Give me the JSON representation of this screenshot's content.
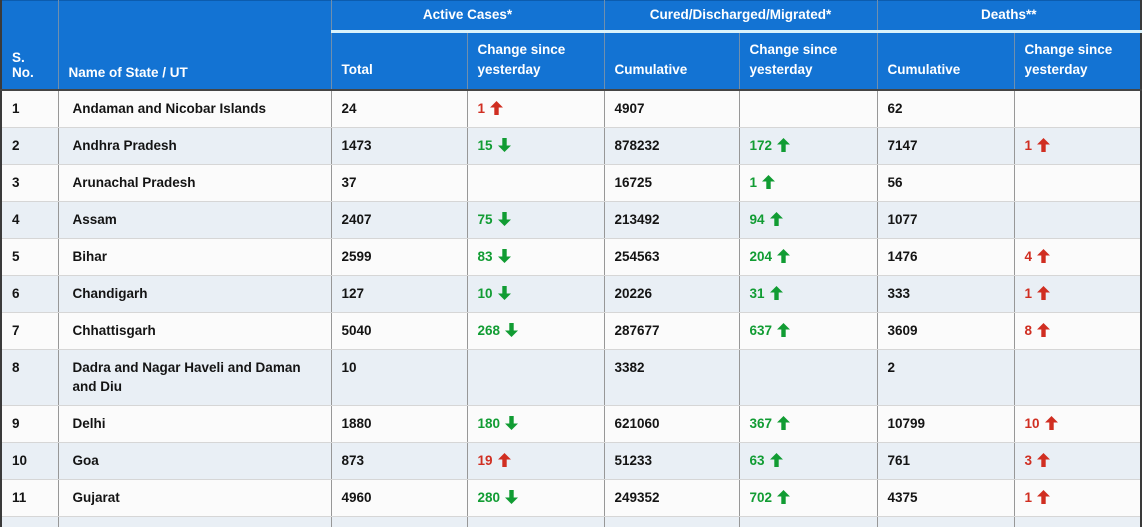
{
  "page": {
    "background": "#ffffff",
    "description_text": ""
  },
  "colors": {
    "header_bg": "#1373d3",
    "header_text": "#ffffff",
    "header_divider": "#d9f2fb",
    "row_even_bg": "#e9eff5",
    "row_odd_bg": "#fbfbfb",
    "positive_green": "#119c33",
    "negative_red": "#d02e21",
    "cell_text": "#141414"
  },
  "table": {
    "groups": [
      {
        "label": "Active Cases*"
      },
      {
        "label": "Cured/Discharged/Migrated*"
      },
      {
        "label": "Deaths**"
      }
    ],
    "headers": {
      "serial": "S. No.",
      "state": "Name of State / UT",
      "active_total": "Total",
      "active_change": "Change since yesterday",
      "cured_cumulative": "Cumulative",
      "cured_change": "Change since yesterday",
      "deaths_cumulative": "Cumulative",
      "deaths_change": "Change since yesterday"
    },
    "rows": [
      {
        "sno": "1",
        "state": "Andaman and Nicobar Islands",
        "active_total": "24",
        "active_change": {
          "value": "1",
          "dir": "up",
          "color": "red"
        },
        "cured_cumulative": "4907",
        "cured_change": null,
        "deaths_cumulative": "62",
        "deaths_change": null
      },
      {
        "sno": "2",
        "state": "Andhra Pradesh",
        "active_total": "1473",
        "active_change": {
          "value": "15",
          "dir": "down",
          "color": "green"
        },
        "cured_cumulative": "878232",
        "cured_change": {
          "value": "172",
          "dir": "up",
          "color": "green"
        },
        "deaths_cumulative": "7147",
        "deaths_change": {
          "value": "1",
          "dir": "up",
          "color": "red"
        }
      },
      {
        "sno": "3",
        "state": "Arunachal Pradesh",
        "active_total": "37",
        "active_change": null,
        "cured_cumulative": "16725",
        "cured_change": {
          "value": "1",
          "dir": "up",
          "color": "green"
        },
        "deaths_cumulative": "56",
        "deaths_change": null
      },
      {
        "sno": "4",
        "state": "Assam",
        "active_total": "2407",
        "active_change": {
          "value": "75",
          "dir": "down",
          "color": "green"
        },
        "cured_cumulative": "213492",
        "cured_change": {
          "value": "94",
          "dir": "up",
          "color": "green"
        },
        "deaths_cumulative": "1077",
        "deaths_change": null
      },
      {
        "sno": "5",
        "state": "Bihar",
        "active_total": "2599",
        "active_change": {
          "value": "83",
          "dir": "down",
          "color": "green"
        },
        "cured_cumulative": "254563",
        "cured_change": {
          "value": "204",
          "dir": "up",
          "color": "green"
        },
        "deaths_cumulative": "1476",
        "deaths_change": {
          "value": "4",
          "dir": "up",
          "color": "red"
        }
      },
      {
        "sno": "6",
        "state": "Chandigarh",
        "active_total": "127",
        "active_change": {
          "value": "10",
          "dir": "down",
          "color": "green"
        },
        "cured_cumulative": "20226",
        "cured_change": {
          "value": "31",
          "dir": "up",
          "color": "green"
        },
        "deaths_cumulative": "333",
        "deaths_change": {
          "value": "1",
          "dir": "up",
          "color": "red"
        }
      },
      {
        "sno": "7",
        "state": "Chhattisgarh",
        "active_total": "5040",
        "active_change": {
          "value": "268",
          "dir": "down",
          "color": "green"
        },
        "cured_cumulative": "287677",
        "cured_change": {
          "value": "637",
          "dir": "up",
          "color": "green"
        },
        "deaths_cumulative": "3609",
        "deaths_change": {
          "value": "8",
          "dir": "up",
          "color": "red"
        }
      },
      {
        "sno": "8",
        "state": "Dadra and Nagar Haveli and Daman and Diu",
        "active_total": "10",
        "active_change": null,
        "cured_cumulative": "3382",
        "cured_change": null,
        "deaths_cumulative": "2",
        "deaths_change": null
      },
      {
        "sno": "9",
        "state": "Delhi",
        "active_total": "1880",
        "active_change": {
          "value": "180",
          "dir": "down",
          "color": "green"
        },
        "cured_cumulative": "621060",
        "cured_change": {
          "value": "367",
          "dir": "up",
          "color": "green"
        },
        "deaths_cumulative": "10799",
        "deaths_change": {
          "value": "10",
          "dir": "up",
          "color": "red"
        }
      },
      {
        "sno": "10",
        "state": "Goa",
        "active_total": "873",
        "active_change": {
          "value": "19",
          "dir": "up",
          "color": "red"
        },
        "cured_cumulative": "51233",
        "cured_change": {
          "value": "63",
          "dir": "up",
          "color": "green"
        },
        "deaths_cumulative": "761",
        "deaths_change": {
          "value": "3",
          "dir": "up",
          "color": "red"
        }
      },
      {
        "sno": "11",
        "state": "Gujarat",
        "active_total": "4960",
        "active_change": {
          "value": "280",
          "dir": "down",
          "color": "green"
        },
        "cured_cumulative": "249352",
        "cured_change": {
          "value": "702",
          "dir": "up",
          "color": "green"
        },
        "deaths_cumulative": "4375",
        "deaths_change": {
          "value": "1",
          "dir": "up",
          "color": "red"
        }
      }
    ],
    "partial_next_row": true
  }
}
